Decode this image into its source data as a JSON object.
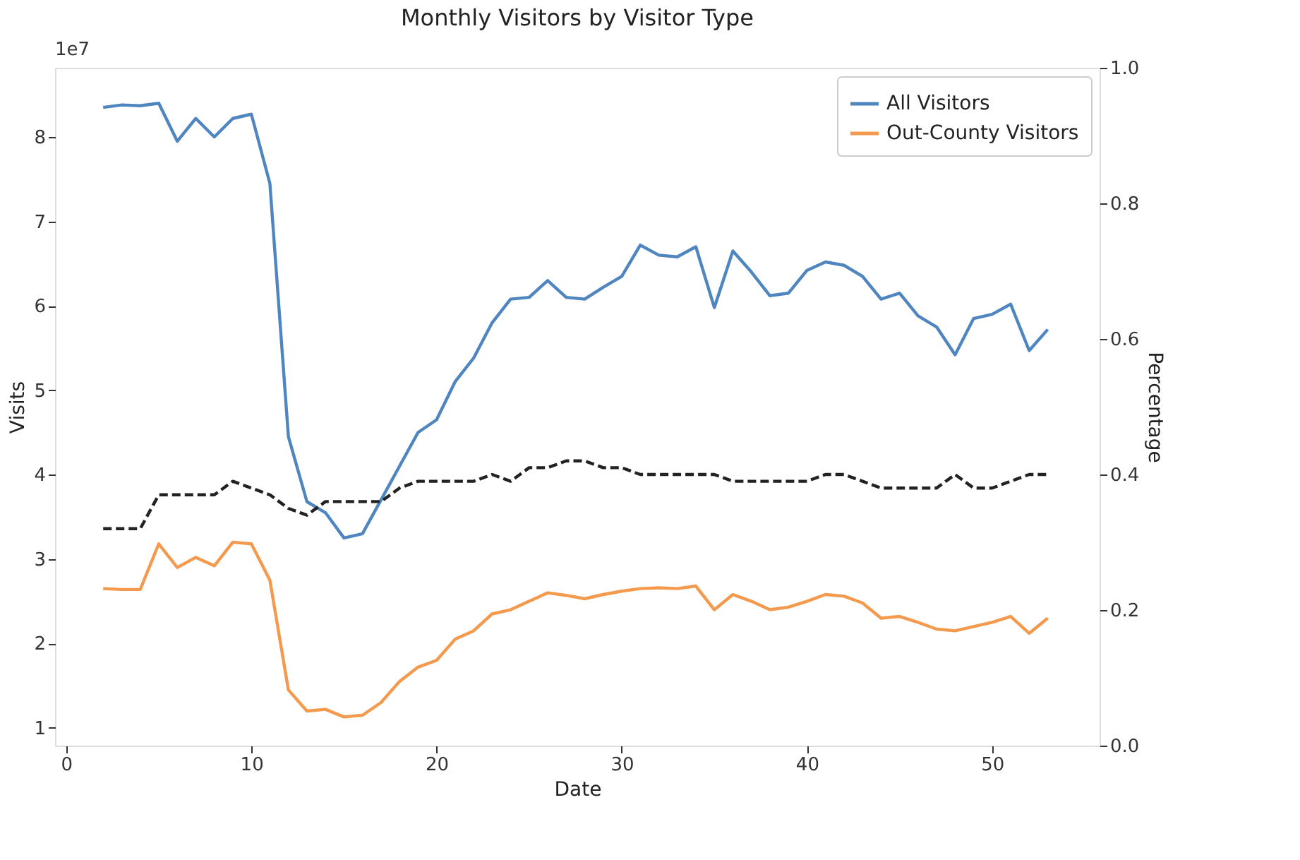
{
  "chart_data": {
    "type": "line",
    "title": "Monthly Visitors by Visitor Type",
    "xlabel": "Date",
    "ylabel": "Visits",
    "y2label": "Percentage",
    "annotations": [
      "1e7"
    ],
    "x": [
      2,
      3,
      4,
      5,
      6,
      7,
      8,
      9,
      10,
      11,
      12,
      13,
      14,
      15,
      16,
      17,
      18,
      19,
      20,
      21,
      22,
      23,
      24,
      25,
      26,
      27,
      28,
      29,
      30,
      31,
      32,
      33,
      34,
      35,
      36,
      37,
      38,
      39,
      40,
      41,
      42,
      43,
      44,
      45,
      46,
      47,
      48,
      49,
      50,
      51,
      52,
      53
    ],
    "series": [
      {
        "name": "All Visitors",
        "color": "#4f86c0",
        "values": [
          8.35,
          8.38,
          8.37,
          8.4,
          7.95,
          8.22,
          8.0,
          8.22,
          8.27,
          7.45,
          4.45,
          3.68,
          3.55,
          3.25,
          3.3,
          3.7,
          4.1,
          4.5,
          4.65,
          5.1,
          5.38,
          5.8,
          6.08,
          6.1,
          6.3,
          6.1,
          6.08,
          6.22,
          6.35,
          6.72,
          6.6,
          6.58,
          6.7,
          5.98,
          6.65,
          6.4,
          6.12,
          6.15,
          6.42,
          6.52,
          6.48,
          6.35,
          6.08,
          6.15,
          5.88,
          5.75,
          5.42,
          5.85,
          5.9,
          6.02,
          5.47,
          5.72
        ]
      },
      {
        "name": "Out-County Visitors",
        "color": "#f39a4e",
        "values": [
          2.65,
          2.64,
          2.64,
          3.18,
          2.9,
          3.02,
          2.92,
          3.2,
          3.18,
          2.75,
          1.45,
          1.2,
          1.22,
          1.13,
          1.15,
          1.3,
          1.55,
          1.72,
          1.8,
          2.05,
          2.15,
          2.35,
          2.4,
          2.5,
          2.6,
          2.57,
          2.53,
          2.58,
          2.62,
          2.65,
          2.66,
          2.65,
          2.68,
          2.4,
          2.58,
          2.5,
          2.4,
          2.43,
          2.5,
          2.58,
          2.56,
          2.48,
          2.3,
          2.32,
          2.25,
          2.17,
          2.15,
          2.2,
          2.25,
          2.32,
          2.12,
          2.3
        ]
      },
      {
        "color": "#222222",
        "axis": "y2",
        "line_style": "dashed",
        "values": [
          0.32,
          0.32,
          0.32,
          0.37,
          0.37,
          0.37,
          0.37,
          0.39,
          0.38,
          0.37,
          0.35,
          0.34,
          0.36,
          0.36,
          0.36,
          0.36,
          0.38,
          0.39,
          0.39,
          0.39,
          0.39,
          0.4,
          0.39,
          0.41,
          0.41,
          0.42,
          0.42,
          0.41,
          0.41,
          0.4,
          0.4,
          0.4,
          0.4,
          0.4,
          0.39,
          0.39,
          0.39,
          0.39,
          0.39,
          0.4,
          0.4,
          0.39,
          0.38,
          0.38,
          0.38,
          0.38,
          0.4,
          0.38,
          0.38,
          0.39,
          0.4,
          0.4
        ]
      }
    ],
    "xlim": [
      -0.6,
      55.8
    ],
    "xticks": [
      0,
      10,
      20,
      30,
      40,
      50
    ],
    "ylim": [
      0.79,
      8.82
    ],
    "yticks": [
      1,
      2,
      3,
      4,
      5,
      6,
      7,
      8
    ],
    "y2lim": [
      0,
      1
    ],
    "y2ticks": [
      {
        "value": 0,
        "label": "0.0"
      },
      {
        "value": 0.2,
        "label": "0.2"
      },
      {
        "value": 0.4,
        "label": "0.4"
      },
      {
        "value": 0.6,
        "label": "0.6"
      },
      {
        "value": 0.8,
        "label": "0.8"
      },
      {
        "value": 1,
        "label": "1.0"
      }
    ],
    "legend": "top right",
    "grid": false,
    "marker": "none",
    "line_style": "solid"
  }
}
